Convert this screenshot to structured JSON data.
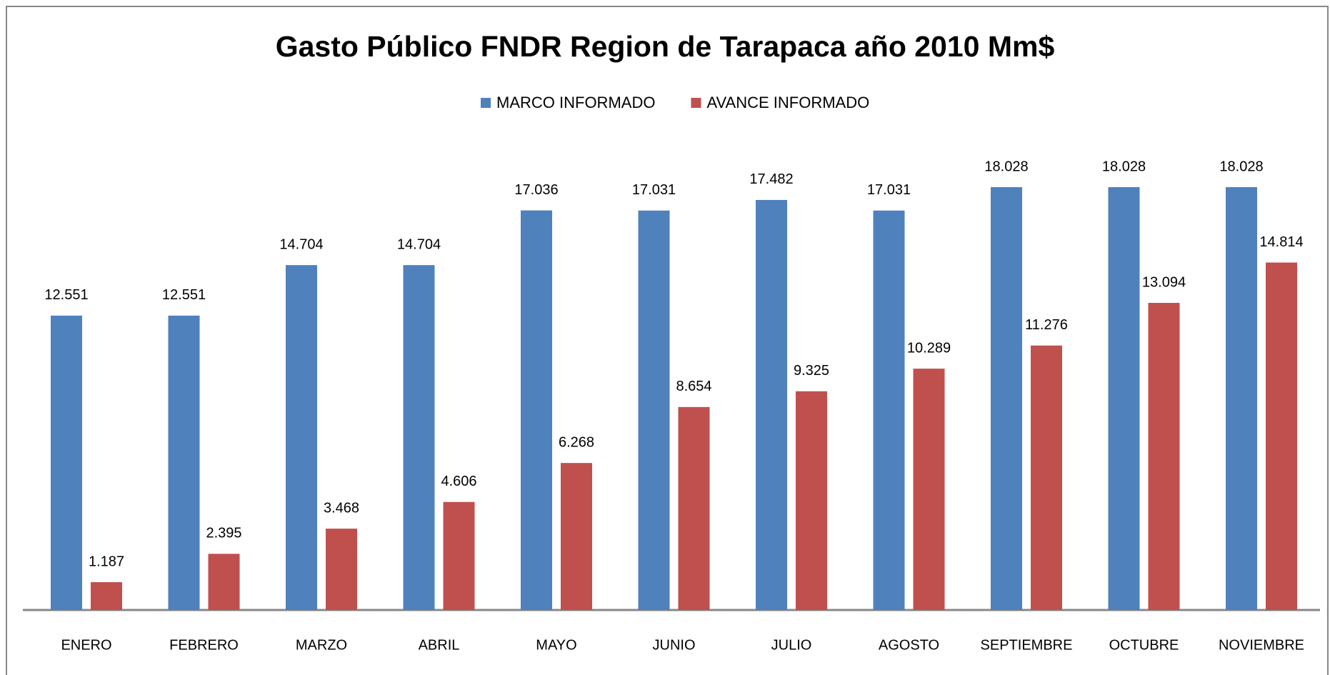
{
  "chart_data": {
    "type": "bar",
    "title": "Gasto Público FNDR  Region de Tarapaca año 2010 Mm$",
    "categories": [
      "ENERO",
      "FEBRERO",
      "MARZO",
      "ABRIL",
      "MAYO",
      "JUNIO",
      "JULIO",
      "AGOSTO",
      "SEPTIEMBRE",
      "OCTUBRE",
      "NOVIEMBRE"
    ],
    "series": [
      {
        "name": "MARCO INFORMADO",
        "color": "#4f81bd",
        "values": [
          12.551,
          12.551,
          14.704,
          14.704,
          17.036,
          17.031,
          17.482,
          17.031,
          18.028,
          18.028,
          18.028
        ]
      },
      {
        "name": "AVANCE INFORMADO",
        "color": "#c0504d",
        "values": [
          1.187,
          2.395,
          3.468,
          4.606,
          6.268,
          8.654,
          9.325,
          10.289,
          11.276,
          13.094,
          14.814
        ]
      }
    ],
    "legend": "top"
  }
}
